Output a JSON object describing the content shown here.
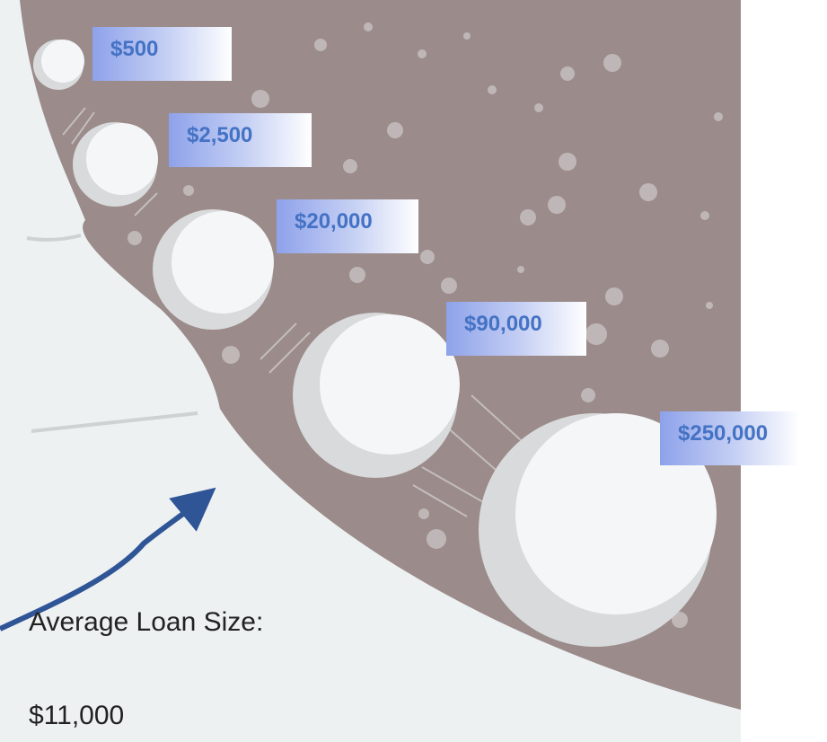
{
  "labels": [
    "$500",
    "$2,500",
    "$20,000",
    "$90,000",
    "$250,000"
  ],
  "caption": {
    "line1": "Average Loan Size:",
    "line2": "$11,000"
  }
}
